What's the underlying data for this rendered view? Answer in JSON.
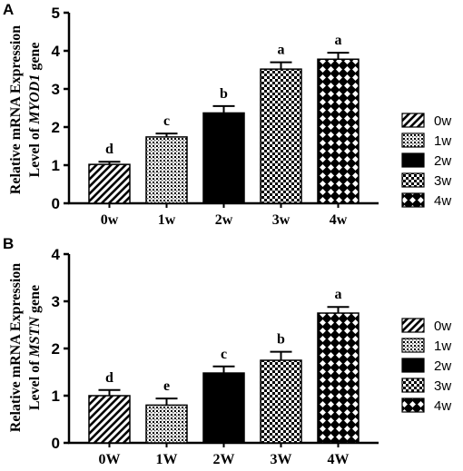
{
  "chart_data": [
    {
      "panel": "A",
      "type": "bar",
      "categories": [
        "0w",
        "1w",
        "2w",
        "3w",
        "4w"
      ],
      "values": [
        1.02,
        1.74,
        2.37,
        3.52,
        3.78
      ],
      "errors": [
        0.07,
        0.09,
        0.18,
        0.18,
        0.17
      ],
      "significance": [
        "d",
        "c",
        "b",
        "a",
        "a"
      ],
      "ylabel_prefix": "Relative mRNA Expression",
      "ylabel_level": "Level of ",
      "gene": "MYOD1",
      "ylabel_suffix": " gene",
      "ylim": [
        0,
        5
      ],
      "yticks": [
        0,
        1,
        2,
        3,
        4,
        5
      ],
      "legend": [
        "0w",
        "1w",
        "2w",
        "3w",
        "4w"
      ],
      "legend_placement": "right",
      "grid": false
    },
    {
      "panel": "B",
      "type": "bar",
      "categories": [
        "0W",
        "1W",
        "2W",
        "3W",
        "4W"
      ],
      "values": [
        1.0,
        0.8,
        1.48,
        1.75,
        2.75
      ],
      "errors": [
        0.12,
        0.14,
        0.14,
        0.18,
        0.13
      ],
      "significance": [
        "d",
        "e",
        "c",
        "b",
        "a"
      ],
      "ylabel_prefix": "Relative mRNA Expression",
      "ylabel_level": "Level of ",
      "gene": "MSTN",
      "ylabel_suffix": " gene",
      "ylim": [
        0,
        4
      ],
      "yticks": [
        0,
        1,
        2,
        3,
        4
      ],
      "legend": [
        "0w",
        "1w",
        "2w",
        "3w",
        "4w"
      ],
      "legend_placement": "right",
      "grid": false
    }
  ],
  "colors": {
    "ink": "#000000",
    "background": "#ffffff"
  },
  "patterns": [
    "diagonal-stripes",
    "fine-dots",
    "solid-black",
    "checkered",
    "crosshatch"
  ]
}
